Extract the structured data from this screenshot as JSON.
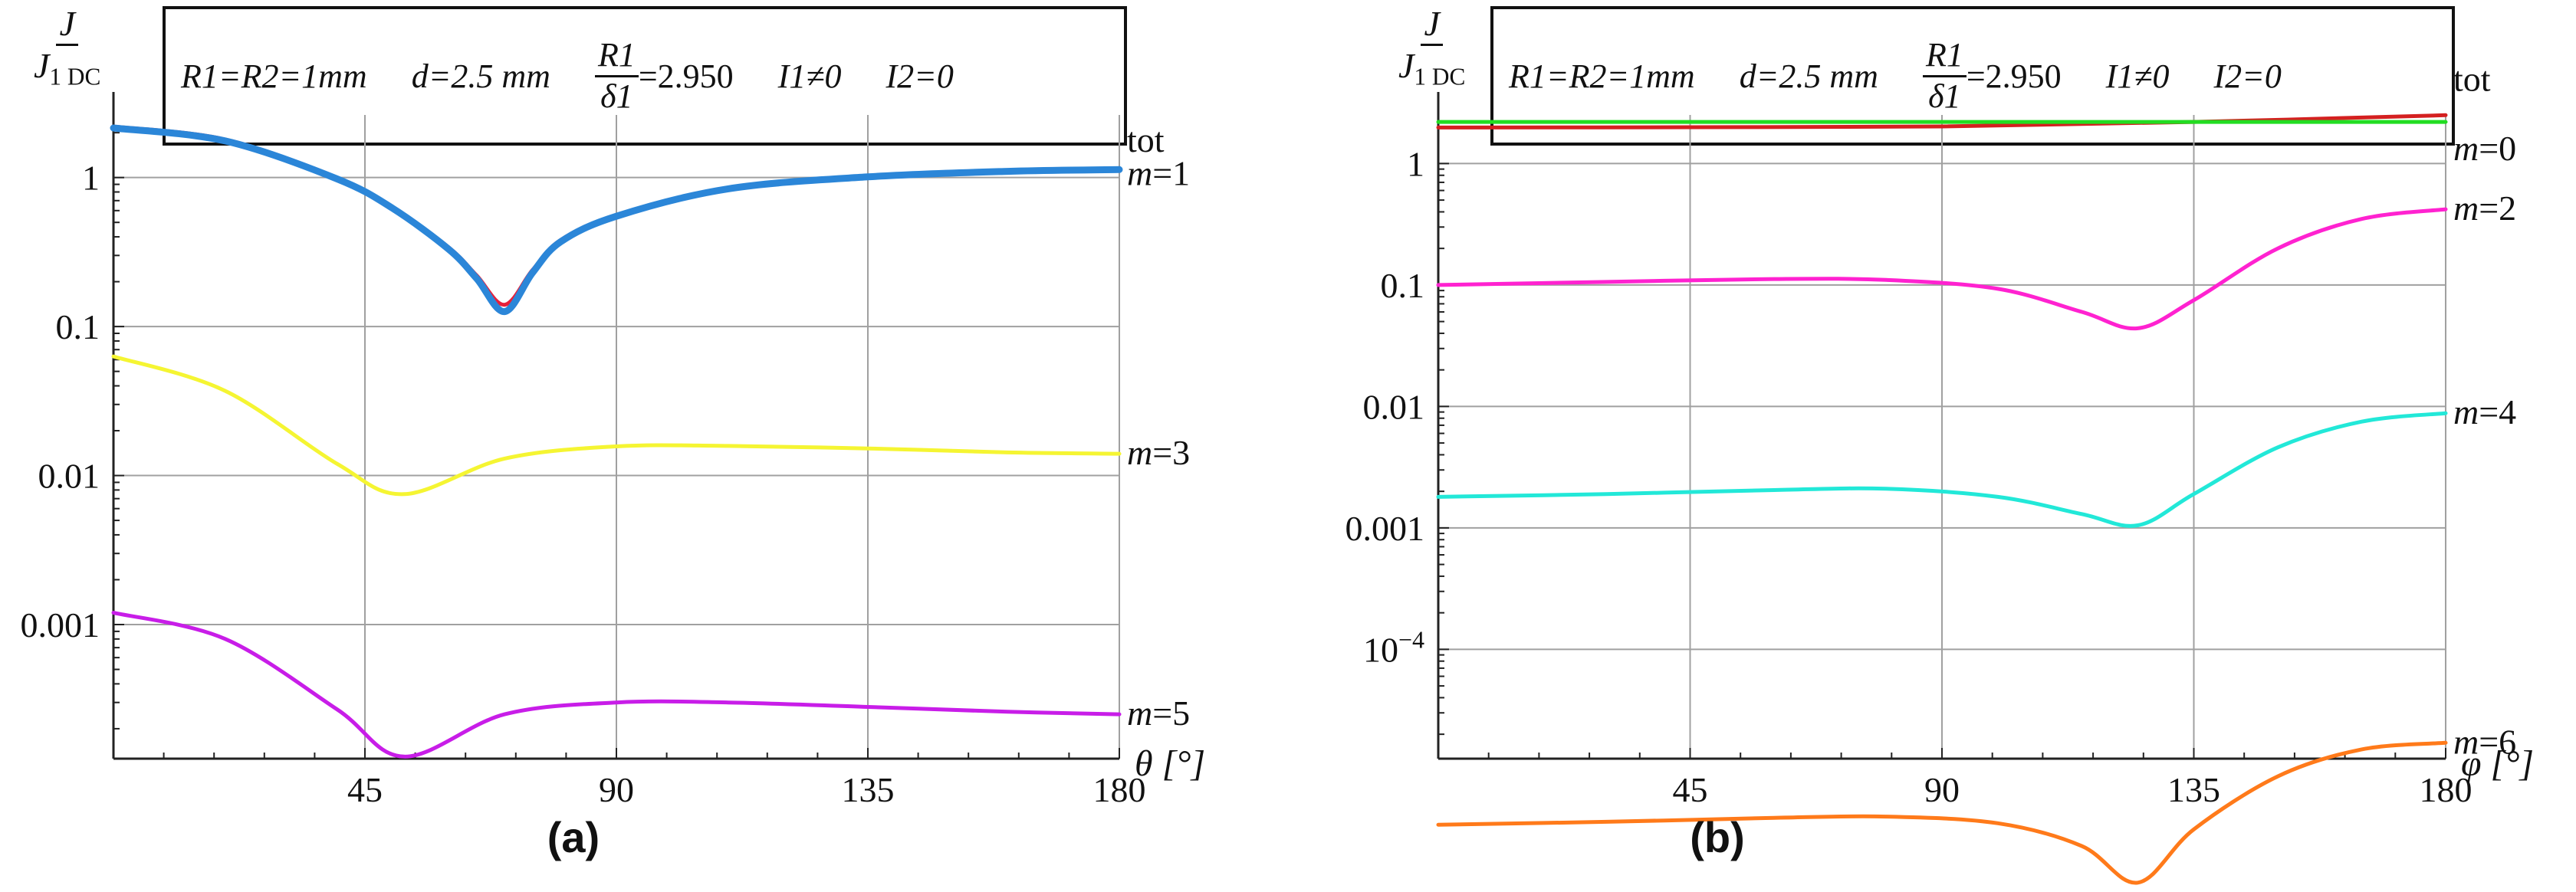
{
  "chart_data": [
    {
      "type": "line",
      "panel_label": "(a)",
      "y_label": {
        "numerator": "J",
        "denominator": "J",
        "denominator_sub": "1 DC"
      },
      "legend_box": {
        "radius_label": "R1=R2=1mm",
        "distance_label": "d=2.5 mm",
        "ratio_numerator": "R1",
        "ratio_denominator": "δ1",
        "ratio_value": "=2.950",
        "current1": "I1≠0",
        "current2": "I2=0"
      },
      "xlabel": "θ [°]",
      "xlim": [
        0,
        180
      ],
      "ylim_log10": [
        -3.9,
        0.42
      ],
      "y_scale": "log",
      "x_ticks": [
        "45",
        "90",
        "135",
        "180"
      ],
      "y_ticks": [
        "1",
        "0.1",
        "0.01",
        "0.001"
      ],
      "grid": true,
      "series": [
        {
          "name": "tot",
          "label": "tot",
          "color": "#e8203a",
          "x": [
            0,
            20,
            40,
            50,
            60,
            65,
            70,
            75,
            80,
            90,
            110,
            135,
            160,
            180
          ],
          "values": [
            2.2,
            1.8,
            1.0,
            0.63,
            0.34,
            0.22,
            0.14,
            0.24,
            0.38,
            0.56,
            0.85,
            1.02,
            1.12,
            1.15
          ]
        },
        {
          "name": "m=1",
          "label": "m=1",
          "color": "#2b86d8",
          "x": [
            0,
            20,
            40,
            50,
            60,
            65,
            70,
            75,
            80,
            90,
            110,
            135,
            160,
            180
          ],
          "values": [
            2.15,
            1.76,
            0.98,
            0.62,
            0.33,
            0.21,
            0.126,
            0.23,
            0.37,
            0.55,
            0.84,
            1.01,
            1.1,
            1.13
          ]
        },
        {
          "name": "m=3",
          "label": "m=3",
          "color": "#f5f532",
          "x": [
            0,
            20,
            40,
            52,
            70,
            90,
            110,
            135,
            160,
            180
          ],
          "values": [
            0.063,
            0.037,
            0.012,
            0.0075,
            0.013,
            0.0157,
            0.0158,
            0.0152,
            0.0143,
            0.014
          ]
        },
        {
          "name": "m=5",
          "label": "m=5",
          "color": "#c81de8",
          "x": [
            0,
            20,
            40,
            52,
            70,
            90,
            110,
            135,
            160,
            180
          ],
          "values": [
            0.0012,
            0.0008,
            0.00027,
            0.00013,
            0.00025,
            0.0003,
            0.0003,
            0.00028,
            0.00026,
            0.00025
          ]
        }
      ]
    },
    {
      "type": "line",
      "panel_label": "(b)",
      "y_label": {
        "numerator": "J",
        "denominator": "J",
        "denominator_sub": "1 DC"
      },
      "legend_box": {
        "radius_label": "R1=R2=1mm",
        "distance_label": "d=2.5 mm",
        "ratio_numerator": "R1",
        "ratio_denominator": "δ1",
        "ratio_value": "=2.950",
        "current1": "I1≠0",
        "current2": "I2=0"
      },
      "xlabel": "φ [°]",
      "xlim": [
        0,
        180
      ],
      "ylim_log10": [
        -4.9,
        0.4
      ],
      "y_scale": "log",
      "x_ticks": [
        "45",
        "90",
        "135",
        "180"
      ],
      "y_ticks": [
        "1",
        "0.1",
        "0.01",
        "0.001",
        "10^-4"
      ],
      "grid": true,
      "series": [
        {
          "name": "tot",
          "label": "tot",
          "color": "#d42020",
          "x": [
            0,
            45,
            90,
            135,
            180
          ],
          "values": [
            1.98,
            1.99,
            2.02,
            2.2,
            2.5
          ]
        },
        {
          "name": "m=0",
          "label": "m=0",
          "color": "#22dd22",
          "x": [
            0,
            45,
            90,
            135,
            180
          ],
          "values": [
            2.2,
            2.2,
            2.2,
            2.2,
            2.2
          ]
        },
        {
          "name": "m=2",
          "label": "m=2",
          "color": "#ff22d0",
          "x": [
            0,
            30,
            60,
            80,
            100,
            115,
            125,
            135,
            150,
            165,
            180
          ],
          "values": [
            0.1,
            0.106,
            0.112,
            0.11,
            0.093,
            0.06,
            0.044,
            0.075,
            0.2,
            0.35,
            0.42
          ]
        },
        {
          "name": "m=4",
          "label": "m=4",
          "color": "#22e8d8",
          "x": [
            0,
            30,
            60,
            80,
            100,
            115,
            125,
            135,
            150,
            165,
            180
          ],
          "values": [
            0.0018,
            0.0019,
            0.00205,
            0.0021,
            0.0018,
            0.0013,
            0.00105,
            0.0019,
            0.0046,
            0.0075,
            0.0088
          ]
        },
        {
          "name": "m=6",
          "label": "m=6",
          "color": "#ff7a1a",
          "x": [
            0,
            30,
            60,
            80,
            100,
            115,
            125,
            135,
            150,
            165,
            180
          ],
          "values": [
            3.6e-06,
            3.8e-06,
            4.1e-06,
            4.2e-06,
            3.7e-06,
            2.4e-06,
            1.2e-06,
            3.3e-06,
            9e-06,
            1.5e-05,
            1.7e-05
          ]
        }
      ]
    }
  ]
}
